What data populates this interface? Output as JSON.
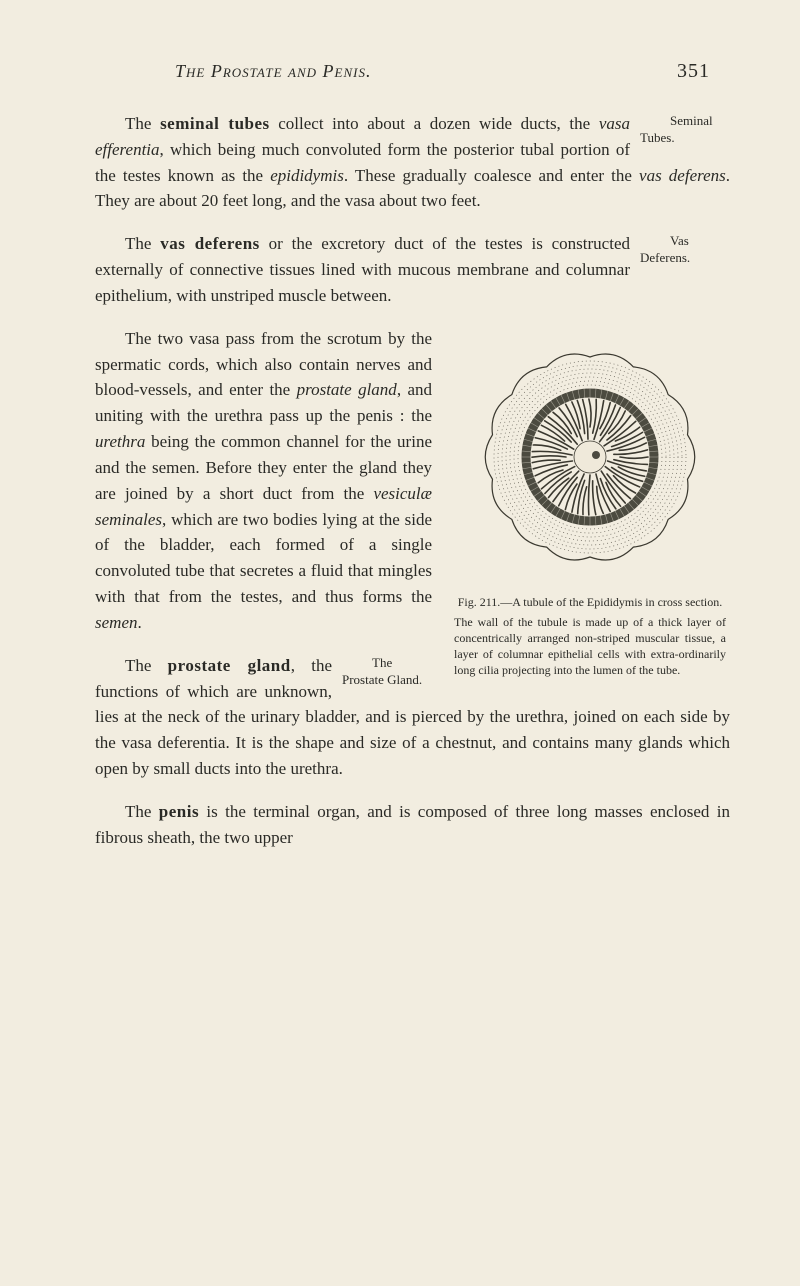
{
  "header": {
    "title": "The Prostate and Penis.",
    "page_number": "351"
  },
  "margin_notes": {
    "seminal_tubes": "Seminal Tubes.",
    "vas_deferens": "Vas Deferens.",
    "prostate_gland": "The Prostate Gland."
  },
  "paragraphs": {
    "p1a": "The ",
    "p1_term": "seminal tubes",
    "p1b": " collect into about a dozen wide ducts, the ",
    "p1_i1": "vasa efferentia",
    "p1c": ", which being much convoluted form the posterior tubal portion of the testes known as the ",
    "p1_i2": "epididymis",
    "p1d": ". These gradually coalesce and enter the ",
    "p1_i3": "vas deferens",
    "p1e": ". They are about 20 feet long, and the vasa about two feet.",
    "p2a": "The ",
    "p2_term": "vas deferens",
    "p2b": " or the excretory duct of the testes is constructed externally of connective tissues lined with mucous membrane and columnar epithelium, with unstriped muscle between.",
    "p3a": "The two vasa pass from the scrotum by the spermatic cords, which also contain nerves and blood-vessels, and enter the ",
    "p3_i1": "prostate gland",
    "p3b": ", and uniting with the urethra pass up the penis : the ",
    "p3_i2": "urethra",
    "p3c": " being the common channel for the urine and the semen. Before they enter the gland they are joined by a short duct from the ",
    "p3_i3": "vesiculæ seminales",
    "p3d": ", which are two bodies lying at the side of the bladder, each formed of a single convoluted tube that secretes a fluid that mingles with that from the testes, and thus forms the ",
    "p3_i4": "semen",
    "p3e": ".",
    "p4a": "The ",
    "p4_term": "prostate gland",
    "p4b": ", the functions of which are unknown, lies at the neck of the urinary bladder, and is pierced by the urethra, joined on each side by the vasa deferentia. It is the shape and size of a chestnut, and contains many glands which open by small ducts into the urethra.",
    "p5a": "The ",
    "p5_term": "penis",
    "p5b": " is the terminal organ, and is composed of three long masses enclosed in fibrous sheath, the two upper"
  },
  "figure": {
    "caption_title": "Fig. 211.—A tubule of the Epididymis in cross section.",
    "caption_body": "The wall of the tubule is made up of a thick layer of concentrically arranged non-striped muscular tissue, a layer of columnar epithelial cells with extra-ordinarily long cilia projecting into the lumen of the tube.",
    "colors": {
      "background": "#f2ede0",
      "outline": "#3a382f",
      "stipple": "#4a473d",
      "center": "#efe9da"
    },
    "cilia_count": 56,
    "outer_lobe_count": 14
  },
  "styles": {
    "page_bg": "#f2ede0",
    "text_color": "#2a2a26",
    "body_fontsize": 17,
    "caption_fontsize": 12,
    "margin_note_fontsize": 13
  }
}
